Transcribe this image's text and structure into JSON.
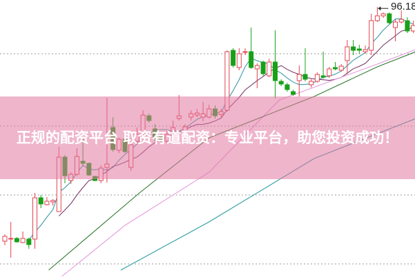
{
  "banner": {
    "title": "正规的配资平台 取资有道配资：专业平台，助您投资成功！"
  },
  "chart_data": {
    "type": "candlestick",
    "title": "",
    "xlabel": "",
    "ylabel": "",
    "ylim": [
      56.9,
      97.2
    ],
    "grid": true,
    "grid_levels": [
      89.4,
      78.9,
      68.9,
      58.9
    ],
    "high_marker": {
      "label": "96.18",
      "value": 96.18,
      "index": 62
    },
    "colors": {
      "up": "#e0434f",
      "down": "#18a018",
      "ma5": "#3a9aa6",
      "ma10": "#7a3a6a",
      "ma20": "#e59ade",
      "ma30": "#2f7a2f",
      "ma60": "#2a9ca0",
      "grid": "#9a9a9a"
    },
    "candles": [
      [
        62.2,
        62.9,
        63.2,
        61.6
      ],
      [
        62.5,
        62.6,
        65.0,
        59.8
      ],
      [
        62.6,
        62.1,
        62.8,
        62.0
      ],
      [
        62.0,
        62.6,
        63.6,
        61.9
      ],
      [
        62.5,
        61.7,
        62.7,
        61.1
      ],
      [
        62.5,
        68.5,
        69.2,
        61.1
      ],
      [
        68.5,
        67.6,
        68.9,
        67.0
      ],
      [
        67.5,
        68.0,
        68.6,
        67.4
      ],
      [
        67.9,
        68.1,
        68.3,
        67.4
      ],
      [
        66.5,
        74.4,
        75.9,
        66.5
      ],
      [
        74.4,
        71.7,
        74.7,
        70.6
      ],
      [
        71.0,
        71.9,
        72.2,
        70.5
      ],
      [
        71.9,
        74.5,
        75.7,
        71.7
      ],
      [
        73.8,
        73.5,
        77.2,
        73.1
      ],
      [
        73.5,
        71.8,
        73.6,
        71.7
      ],
      [
        71.6,
        71.0,
        71.7,
        70.9
      ],
      [
        71.0,
        72.8,
        73.2,
        70.6
      ],
      [
        72.9,
        73.4,
        83.0,
        70.7
      ],
      [
        78.7,
        75.5,
        80.2,
        75.2
      ],
      [
        75.4,
        77.0,
        77.2,
        75.0
      ],
      [
        77.0,
        75.2,
        77.4,
        75.0
      ],
      [
        72.9,
        76.2,
        76.7,
        72.4
      ],
      [
        76.7,
        77.7,
        78.7,
        76.2
      ],
      [
        77.9,
        80.5,
        81.2,
        77.6
      ],
      [
        80.4,
        79.7,
        80.7,
        79.4
      ],
      [
        78.5,
        77.2,
        79.2,
        76.7
      ],
      [
        77.5,
        76.9,
        78.0,
        76.6
      ],
      [
        76.7,
        77.7,
        78.2,
        76.4
      ],
      [
        78.2,
        78.7,
        79.7,
        77.9
      ],
      [
        80.0,
        80.4,
        83.4,
        79.7
      ],
      [
        78.2,
        78.8,
        79.2,
        78.0
      ],
      [
        80.2,
        80.7,
        81.2,
        79.7
      ],
      [
        80.5,
        80.8,
        81.4,
        80.2
      ],
      [
        80.2,
        80.7,
        82.4,
        79.6
      ],
      [
        80.2,
        81.4,
        82.0,
        80.0
      ],
      [
        81.4,
        80.4,
        81.9,
        80.0
      ],
      [
        80.6,
        81.0,
        81.4,
        80.2
      ],
      [
        81.2,
        89.7,
        89.9,
        81.0
      ],
      [
        89.9,
        87.7,
        90.2,
        87.4
      ],
      [
        87.4,
        89.4,
        90.2,
        87.0
      ],
      [
        89.6,
        89.7,
        90.2,
        89.2
      ],
      [
        89.7,
        87.4,
        93.2,
        87.2
      ],
      [
        87.2,
        87.7,
        88.0,
        84.4
      ],
      [
        88.2,
        86.5,
        88.4,
        86.2
      ],
      [
        86.2,
        88.2,
        88.7,
        86.0
      ],
      [
        88.2,
        85.5,
        92.8,
        82.9
      ],
      [
        85.4,
        85.0,
        85.7,
        84.7
      ],
      [
        84.9,
        84.2,
        85.2,
        83.9
      ],
      [
        83.9,
        83.5,
        84.2,
        83.3
      ],
      [
        85.5,
        86.4,
        87.7,
        83.2
      ],
      [
        86.4,
        85.7,
        90.2,
        85.4
      ],
      [
        84.9,
        85.4,
        85.7,
        84.5
      ],
      [
        85.4,
        86.4,
        86.7,
        85.2
      ],
      [
        86.2,
        86.0,
        89.7,
        85.8
      ],
      [
        86.2,
        87.2,
        87.5,
        85.9
      ],
      [
        87.4,
        87.2,
        88.2,
        87.0
      ],
      [
        87.0,
        87.6,
        87.9,
        86.8
      ],
      [
        88.4,
        90.4,
        91.4,
        86.4
      ],
      [
        90.4,
        89.9,
        91.4,
        89.2
      ],
      [
        90.1,
        89.9,
        90.7,
        89.4
      ],
      [
        89.7,
        90.0,
        90.6,
        89.4
      ],
      [
        89.9,
        94.2,
        95.2,
        89.2
      ],
      [
        94.2,
        94.9,
        96.18,
        94.0
      ],
      [
        94.9,
        95.2,
        95.4,
        94.6
      ],
      [
        95.2,
        93.9,
        95.4,
        93.7
      ],
      [
        93.2,
        94.0,
        94.4,
        91.2
      ],
      [
        94.0,
        94.4,
        95.7,
        93.8
      ],
      [
        94.2,
        92.7,
        94.7,
        92.4
      ],
      [
        92.7,
        93.5,
        94.2,
        92.4
      ]
    ],
    "candle_fields": [
      "open",
      "close",
      "high",
      "low"
    ],
    "moving_averages": [
      {
        "key": "ma5",
        "period": 5
      },
      {
        "key": "ma10",
        "period": 10
      },
      {
        "key": "ma20",
        "points": [
          [
            5,
            54.0
          ],
          [
            10.8,
            58.0
          ],
          [
            20,
            64.5
          ],
          [
            34,
            72.2
          ],
          [
            45.7,
            82.7
          ],
          [
            62,
            87.9
          ],
          [
            69,
            90.2
          ]
        ]
      },
      {
        "key": "ma30",
        "points": [
          [
            7.3,
            58.0
          ],
          [
            22.4,
            69.2
          ],
          [
            34,
            77.2
          ],
          [
            51.5,
            83.2
          ],
          [
            62,
            87.5
          ],
          [
            69,
            89.9
          ]
        ]
      },
      {
        "key": "ma60",
        "points": [
          [
            19.3,
            58.0
          ],
          [
            34,
            65.0
          ],
          [
            51.5,
            74.2
          ],
          [
            69,
            80.2
          ]
        ]
      }
    ]
  }
}
